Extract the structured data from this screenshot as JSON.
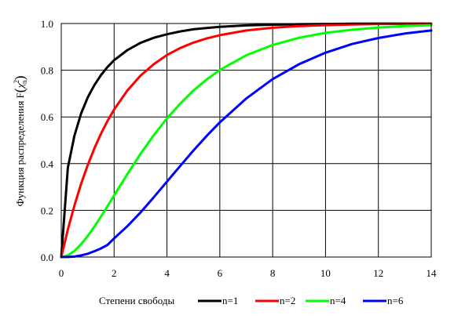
{
  "chart_data": {
    "type": "line",
    "title": "",
    "xlabel": "",
    "ylabel": "Функция распределения F(χ²n)",
    "ylabel_parts": {
      "prefix": "Функция распределения F",
      "symbol": "χ",
      "superscript": "2",
      "subscript": "n"
    },
    "xlim": [
      0,
      14
    ],
    "ylim": [
      0,
      1
    ],
    "x_ticks": [
      "0",
      "2",
      "4",
      "6",
      "8",
      "10",
      "12",
      "14"
    ],
    "y_ticks": [
      "0.0",
      "0.2",
      "0.4",
      "0.6",
      "0.8",
      "1.0"
    ],
    "grid": true,
    "legend": {
      "title": "Степени свободы",
      "placement": "bottom"
    },
    "x": [
      0,
      0.25,
      0.5,
      0.75,
      1,
      1.25,
      1.5,
      1.75,
      2,
      2.5,
      3,
      3.5,
      4,
      4.5,
      5,
      5.5,
      6,
      7,
      8,
      9,
      10,
      11,
      12,
      13,
      14
    ],
    "series": [
      {
        "name": "n=1",
        "color": "#000000",
        "values": [
          0,
          0.383,
          0.52,
          0.614,
          0.683,
          0.736,
          0.779,
          0.814,
          0.843,
          0.886,
          0.917,
          0.939,
          0.954,
          0.966,
          0.975,
          0.981,
          0.986,
          0.992,
          0.995,
          0.997,
          0.998,
          0.999,
          0.9995,
          0.9997,
          0.9998
        ]
      },
      {
        "name": "n=2",
        "color": "#ff0000",
        "values": [
          0,
          0.118,
          0.221,
          0.313,
          0.393,
          0.465,
          0.528,
          0.583,
          0.632,
          0.713,
          0.777,
          0.826,
          0.865,
          0.895,
          0.918,
          0.936,
          0.95,
          0.97,
          0.982,
          0.989,
          0.993,
          0.996,
          0.998,
          0.9985,
          0.999
        ]
      },
      {
        "name": "n=4",
        "color": "#00ff00",
        "values": [
          0,
          0.007,
          0.026,
          0.055,
          0.09,
          0.13,
          0.173,
          0.218,
          0.264,
          0.355,
          0.442,
          0.522,
          0.594,
          0.657,
          0.713,
          0.76,
          0.801,
          0.864,
          0.908,
          0.939,
          0.96,
          0.973,
          0.983,
          0.989,
          0.993
        ]
      },
      {
        "name": "n=6",
        "color": "#0000ff",
        "values": [
          0,
          0.0003,
          0.002,
          0.007,
          0.014,
          0.025,
          0.037,
          0.052,
          0.08,
          0.132,
          0.191,
          0.256,
          0.323,
          0.39,
          0.456,
          0.518,
          0.577,
          0.679,
          0.762,
          0.826,
          0.875,
          0.912,
          0.938,
          0.957,
          0.97
        ]
      }
    ]
  }
}
